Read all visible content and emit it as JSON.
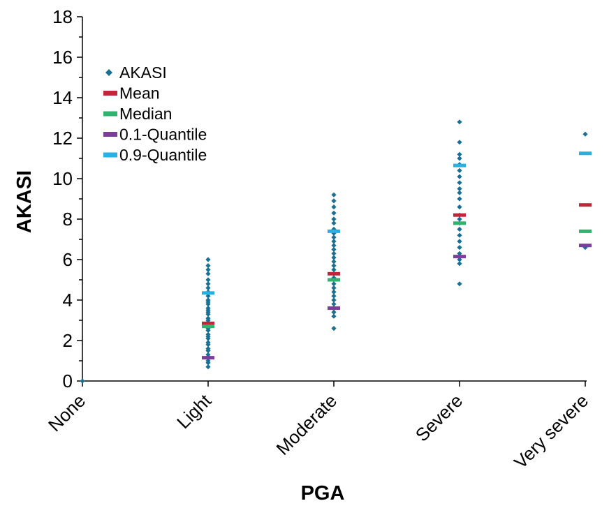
{
  "chart_data": {
    "type": "scatter",
    "xlabel": "PGA",
    "ylabel": "AKASI",
    "ylim": [
      0,
      18
    ],
    "yticks": [
      0,
      2,
      4,
      6,
      8,
      10,
      12,
      14,
      16,
      18
    ],
    "categories": [
      "None",
      "Light",
      "Moderate",
      "Severe",
      "Very severe"
    ],
    "grid": false,
    "legend_position": "top-left",
    "series": [
      {
        "name": "AKASI",
        "marker": "diamond",
        "color": "#1a6f94",
        "points": [
          {
            "category": "None",
            "values": [
              0
            ]
          },
          {
            "category": "Light",
            "values": [
              0.7,
              0.9,
              1.0,
              1.2,
              1.3,
              1.5,
              1.6,
              1.8,
              1.9,
              2.1,
              2.2,
              2.3,
              2.5,
              2.6,
              2.7,
              2.8,
              2.9,
              3.0,
              3.1,
              3.3,
              3.4,
              3.5,
              3.6,
              3.8,
              3.9,
              4.0,
              4.2,
              4.4,
              4.6,
              4.8,
              5.0,
              5.3,
              5.5,
              5.7,
              6.0
            ]
          },
          {
            "category": "Moderate",
            "values": [
              2.6,
              3.2,
              3.4,
              3.6,
              3.8,
              4.0,
              4.2,
              4.4,
              4.6,
              4.8,
              5.0,
              5.1,
              5.3,
              5.5,
              5.7,
              5.9,
              6.1,
              6.3,
              6.5,
              6.7,
              6.9,
              7.1,
              7.3,
              7.5,
              7.8,
              8.0,
              8.3,
              8.6,
              8.9,
              9.2
            ]
          },
          {
            "category": "Severe",
            "values": [
              4.8,
              5.8,
              6.0,
              6.3,
              6.6,
              6.9,
              7.2,
              7.5,
              7.8,
              8.0,
              8.2,
              8.6,
              9.0,
              9.3,
              9.5,
              9.8,
              10.1,
              10.4,
              10.7,
              11.0,
              11.2,
              11.8,
              12.8
            ]
          },
          {
            "category": "Very severe",
            "values": [
              6.6,
              12.2
            ]
          }
        ]
      },
      {
        "name": "Mean",
        "marker": "bar",
        "color": "#c0283a",
        "points": [
          {
            "category": "Light",
            "value": 2.85
          },
          {
            "category": "Moderate",
            "value": 5.3
          },
          {
            "category": "Severe",
            "value": 8.2
          },
          {
            "category": "Very severe",
            "value": 8.7
          }
        ]
      },
      {
        "name": "Median",
        "marker": "bar",
        "color": "#2fb36f",
        "points": [
          {
            "category": "Light",
            "value": 2.7
          },
          {
            "category": "Moderate",
            "value": 5.0
          },
          {
            "category": "Severe",
            "value": 7.8
          },
          {
            "category": "Very severe",
            "value": 7.4
          }
        ]
      },
      {
        "name": "0.1-Quantile",
        "marker": "bar",
        "color": "#7b3f9b",
        "points": [
          {
            "category": "Light",
            "value": 1.15
          },
          {
            "category": "Moderate",
            "value": 3.6
          },
          {
            "category": "Severe",
            "value": 6.15
          },
          {
            "category": "Very severe",
            "value": 6.7
          }
        ]
      },
      {
        "name": "0.9-Quantile",
        "marker": "bar",
        "color": "#29b0e3",
        "points": [
          {
            "category": "Light",
            "value": 4.35
          },
          {
            "category": "Moderate",
            "value": 7.4
          },
          {
            "category": "Severe",
            "value": 10.65
          },
          {
            "category": "Very severe",
            "value": 11.25
          }
        ]
      }
    ]
  }
}
